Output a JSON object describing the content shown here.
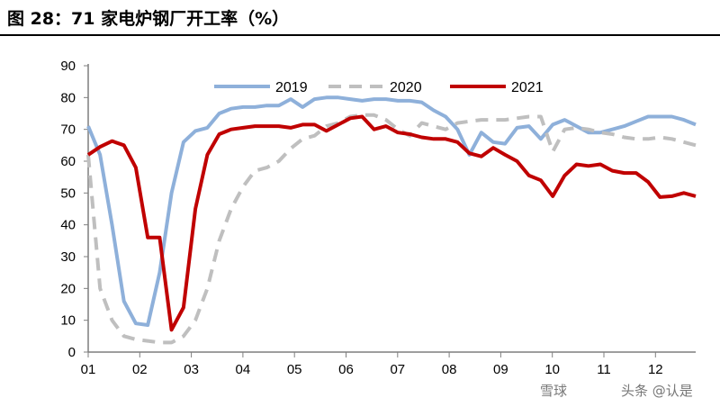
{
  "title": "图 28：71 家电炉钢厂开工率（%）",
  "watermark": [
    "雪球",
    "头条 @认是"
  ],
  "chart_data": {
    "type": "line",
    "title": "图 28：71 家电炉钢厂开工率（%）",
    "xlabel": "",
    "ylabel": "",
    "ylim": [
      0,
      90
    ],
    "yticks": [
      0,
      10,
      20,
      30,
      40,
      50,
      60,
      70,
      80,
      90
    ],
    "xticks": [
      "01",
      "02",
      "03",
      "04",
      "05",
      "06",
      "07",
      "08",
      "09",
      "10",
      "11",
      "12"
    ],
    "grid": false,
    "legend": "top-center",
    "series": [
      {
        "name": "2019",
        "color": "#8EB0DA",
        "dash": false,
        "values": [
          71,
          62,
          40,
          16,
          9,
          8.5,
          25,
          50,
          66,
          69.5,
          70.5,
          75,
          76.5,
          77,
          77,
          77.5,
          77.5,
          79.5,
          77,
          79.5,
          80,
          80,
          79.5,
          79,
          79.5,
          79.5,
          79,
          79,
          78.5,
          76,
          74,
          70,
          62,
          69,
          66,
          65.5,
          70.5,
          71,
          67,
          71.5,
          73,
          71,
          69,
          69,
          70,
          71,
          72.5,
          74,
          74,
          74,
          73,
          71.5
        ]
      },
      {
        "name": "2020",
        "color": "#BFBFBF",
        "dash": true,
        "values": [
          62,
          20,
          10,
          5,
          4,
          3.5,
          3,
          3,
          5,
          10,
          20,
          35,
          45,
          52,
          57,
          58,
          60,
          64,
          67,
          68,
          71,
          72,
          74,
          74.5,
          74.5,
          73,
          70,
          68,
          72,
          71,
          70,
          72,
          72.5,
          73,
          73,
          73,
          73.5,
          74,
          74,
          63,
          70,
          70.5,
          70,
          69,
          68.5,
          67.5,
          67,
          67,
          67.5,
          67,
          66,
          65
        ]
      },
      {
        "name": "2021",
        "color": "#C00000",
        "dash": false,
        "values": [
          62,
          64.5,
          66.3,
          65,
          58,
          36,
          36,
          7,
          14,
          45,
          62,
          68.5,
          70,
          70.5,
          71,
          71,
          71,
          70.5,
          71.5,
          71.5,
          69.5,
          71.5,
          73.5,
          74,
          70,
          71,
          69,
          68.5,
          67.5,
          67,
          67,
          66,
          62.5,
          61.5,
          64.2,
          62,
          60,
          55.5,
          54,
          49,
          55.5,
          59,
          58.5,
          59,
          57,
          56.3,
          56.3,
          53.5,
          48.7,
          49,
          50,
          49
        ]
      }
    ]
  }
}
